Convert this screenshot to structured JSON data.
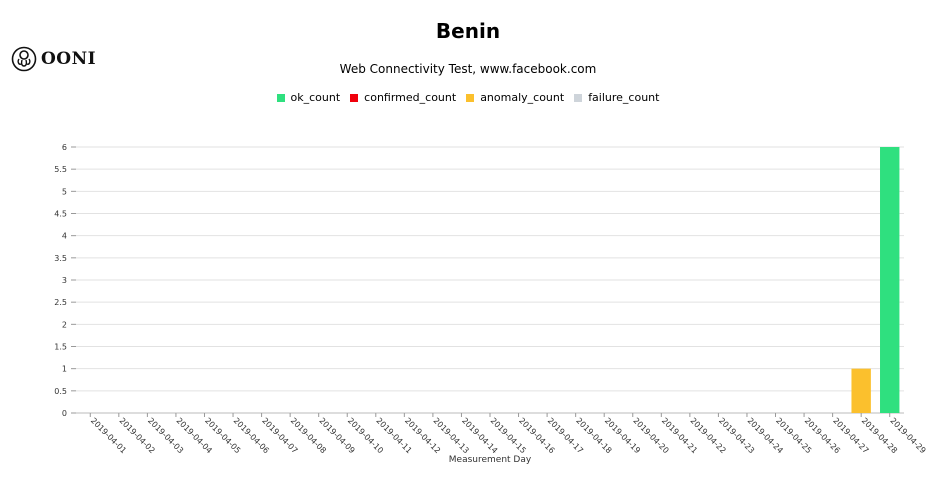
{
  "logo": {
    "text": "OONI",
    "icon": "ooni-octopus-icon"
  },
  "chart_data": {
    "type": "bar",
    "title": "Benin",
    "subtitle": "Web Connectivity Test, www.facebook.com",
    "xlabel": "Measurement Day",
    "ylabel": "",
    "ylim": [
      0,
      6
    ],
    "yticks": [
      "0",
      "0.5",
      "1",
      "1.5",
      "2",
      "2.5",
      "3",
      "3.5",
      "4",
      "4.5",
      "5",
      "5.5",
      "6"
    ],
    "grid": true,
    "legend_position": "top-center",
    "stacked": true,
    "categories": [
      "2019-04-01",
      "2019-04-02",
      "2019-04-03",
      "2019-04-04",
      "2019-04-05",
      "2019-04-06",
      "2019-04-07",
      "2019-04-08",
      "2019-04-09",
      "2019-04-10",
      "2019-04-11",
      "2019-04-12",
      "2019-04-13",
      "2019-04-14",
      "2019-04-15",
      "2019-04-16",
      "2019-04-17",
      "2019-04-18",
      "2019-04-19",
      "2019-04-20",
      "2019-04-21",
      "2019-04-22",
      "2019-04-23",
      "2019-04-24",
      "2019-04-25",
      "2019-04-26",
      "2019-04-27",
      "2019-04-28",
      "2019-04-29"
    ],
    "series": [
      {
        "name": "ok_count",
        "color": "#2fe07f",
        "values": [
          0,
          0,
          0,
          0,
          0,
          0,
          0,
          0,
          0,
          0,
          0,
          0,
          0,
          0,
          0,
          0,
          0,
          0,
          0,
          0,
          0,
          0,
          0,
          0,
          0,
          0,
          0,
          0,
          6
        ]
      },
      {
        "name": "confirmed_count",
        "color": "#f0000c",
        "values": [
          0,
          0,
          0,
          0,
          0,
          0,
          0,
          0,
          0,
          0,
          0,
          0,
          0,
          0,
          0,
          0,
          0,
          0,
          0,
          0,
          0,
          0,
          0,
          0,
          0,
          0,
          0,
          0,
          0
        ]
      },
      {
        "name": "anomaly_count",
        "color": "#fbc02d",
        "values": [
          0,
          0,
          0,
          0,
          0,
          0,
          0,
          0,
          0,
          0,
          0,
          0,
          0,
          0,
          0,
          0,
          0,
          0,
          0,
          0,
          0,
          0,
          0,
          0,
          0,
          0,
          0,
          1,
          0
        ]
      },
      {
        "name": "failure_count",
        "color": "#ced4da",
        "values": [
          0,
          0,
          0,
          0,
          0,
          0,
          0,
          0,
          0,
          0,
          0,
          0,
          0,
          0,
          0,
          0,
          0,
          0,
          0,
          0,
          0,
          0,
          0,
          0,
          0,
          0,
          0,
          0,
          0
        ]
      }
    ]
  }
}
